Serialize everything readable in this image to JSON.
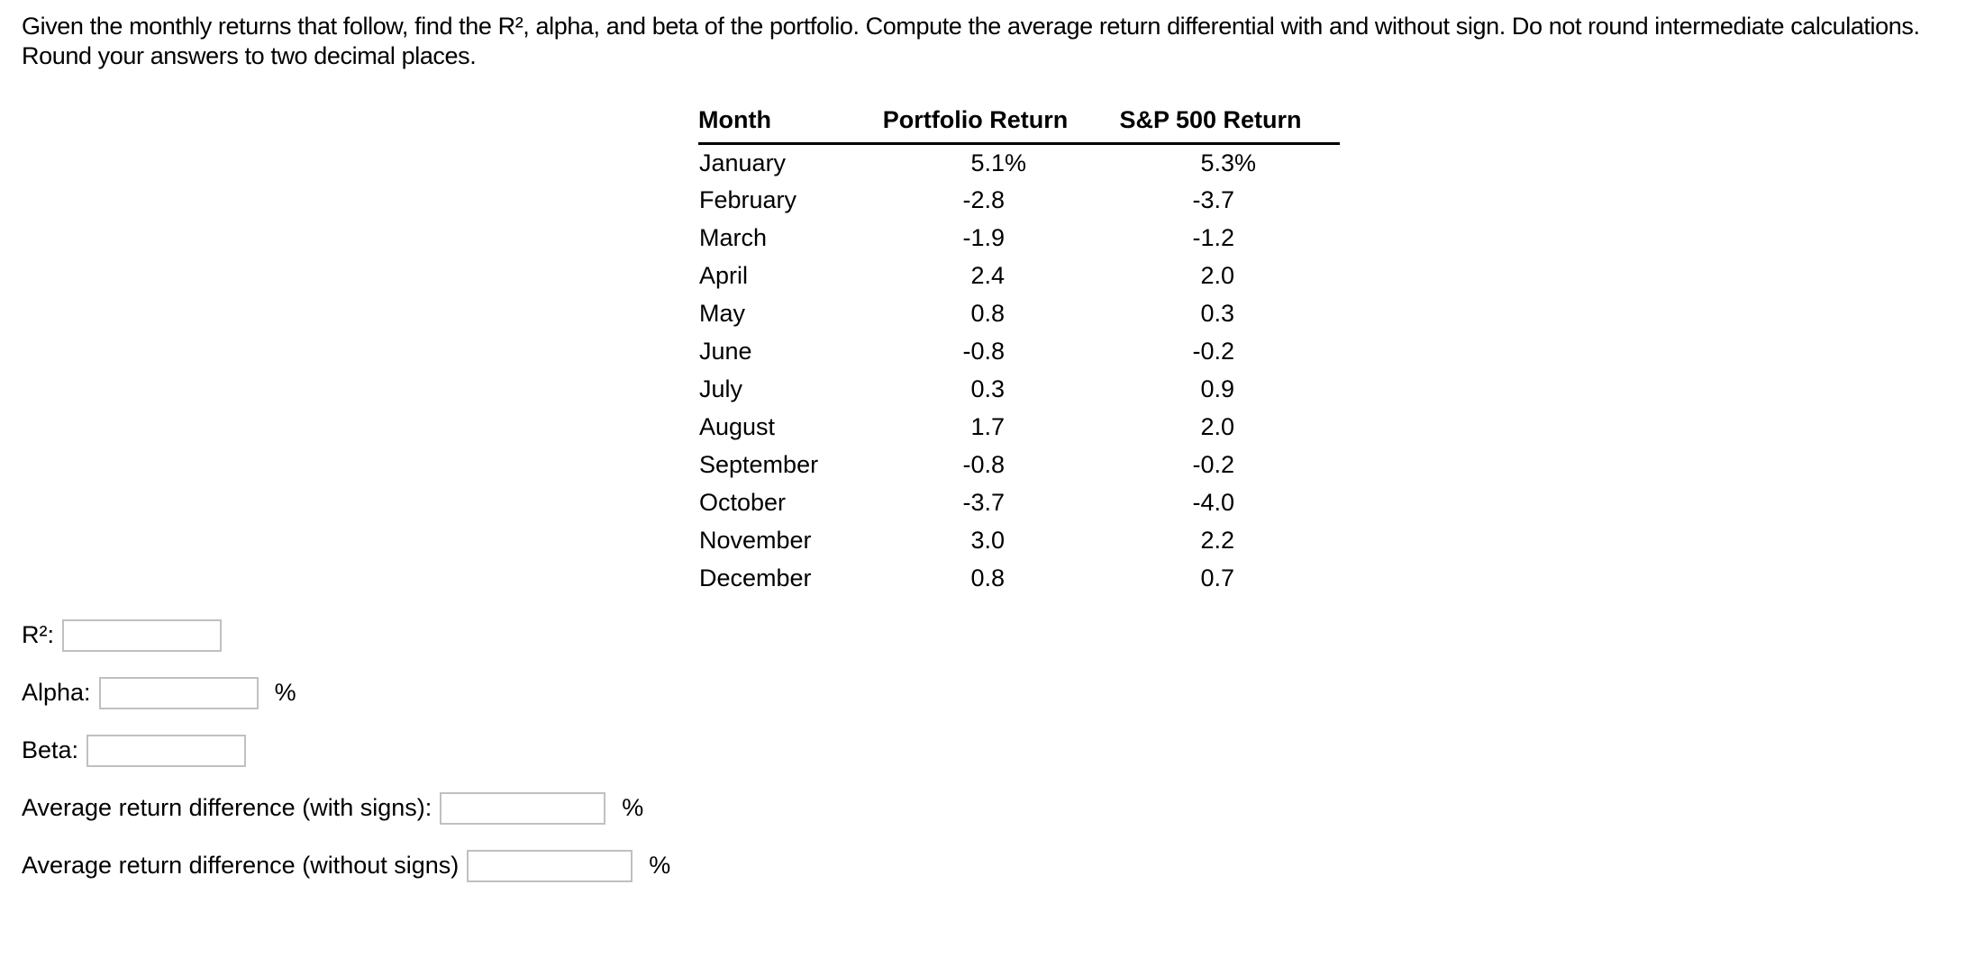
{
  "question": {
    "text": "Given the monthly returns that follow, find the R², alpha, and beta of the portfolio. Compute the average return differential with and without sign. Do not round intermediate calculations. Round your answers to two decimal places."
  },
  "table": {
    "headers": [
      "Month",
      "Portfolio Return",
      "S&P 500 Return"
    ],
    "rows": [
      {
        "month": "January",
        "portfolio": "5.1",
        "portfolio_unit": "%",
        "sp500": "5.3",
        "sp500_unit": "%"
      },
      {
        "month": "February",
        "portfolio": "-2.8",
        "portfolio_unit": "",
        "sp500": "-3.7",
        "sp500_unit": ""
      },
      {
        "month": "March",
        "portfolio": "-1.9",
        "portfolio_unit": "",
        "sp500": "-1.2",
        "sp500_unit": ""
      },
      {
        "month": "April",
        "portfolio": "2.4",
        "portfolio_unit": "",
        "sp500": "2.0",
        "sp500_unit": ""
      },
      {
        "month": "May",
        "portfolio": "0.8",
        "portfolio_unit": "",
        "sp500": "0.3",
        "sp500_unit": ""
      },
      {
        "month": "June",
        "portfolio": "-0.8",
        "portfolio_unit": "",
        "sp500": "-0.2",
        "sp500_unit": ""
      },
      {
        "month": "July",
        "portfolio": "0.3",
        "portfolio_unit": "",
        "sp500": "0.9",
        "sp500_unit": ""
      },
      {
        "month": "August",
        "portfolio": "1.7",
        "portfolio_unit": "",
        "sp500": "2.0",
        "sp500_unit": ""
      },
      {
        "month": "September",
        "portfolio": "-0.8",
        "portfolio_unit": "",
        "sp500": "-0.2",
        "sp500_unit": ""
      },
      {
        "month": "October",
        "portfolio": "-3.7",
        "portfolio_unit": "",
        "sp500": "-4.0",
        "sp500_unit": ""
      },
      {
        "month": "November",
        "portfolio": "3.0",
        "portfolio_unit": "",
        "sp500": "2.2",
        "sp500_unit": ""
      },
      {
        "month": "December",
        "portfolio": "0.8",
        "portfolio_unit": "",
        "sp500": "0.7",
        "sp500_unit": ""
      }
    ]
  },
  "answers": {
    "r2": {
      "label": "R²:",
      "value": "",
      "unit": ""
    },
    "alpha": {
      "label": "Alpha:",
      "value": "",
      "unit": "%"
    },
    "beta": {
      "label": "Beta:",
      "value": "",
      "unit": ""
    },
    "avg_with": {
      "label": "Average return difference (with signs):",
      "value": "",
      "unit": "%"
    },
    "avg_without": {
      "label": "Average return difference (without signs)",
      "value": "",
      "unit": "%"
    }
  }
}
